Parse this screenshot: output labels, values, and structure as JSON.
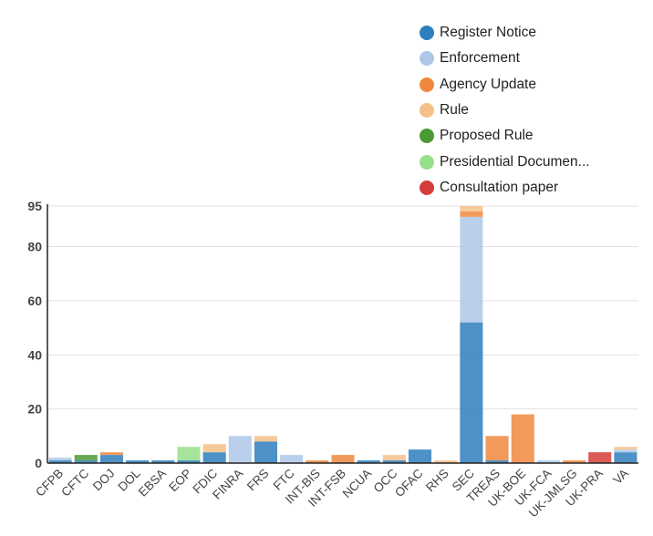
{
  "chart_data": {
    "type": "bar",
    "stacked": true,
    "categories": [
      "CFPB",
      "CFTC",
      "DOJ",
      "DOL",
      "EBSA",
      "EOP",
      "FDIC",
      "FINRA",
      "FRS",
      "FTC",
      "INT-BIS",
      "INT-FSB",
      "NCUA",
      "OCC",
      "OFAC",
      "RHS",
      "SEC",
      "TREAS",
      "UK-BOE",
      "UK-FCA",
      "UK-JMLSG",
      "UK-PRA",
      "VA"
    ],
    "series": [
      {
        "name": "Register Notice",
        "color": "#2f7ebc",
        "values": [
          1,
          1,
          3,
          1,
          1,
          1,
          4,
          0,
          8,
          0,
          0,
          0,
          1,
          1,
          5,
          0,
          52,
          1,
          0,
          0,
          0,
          0,
          4
        ]
      },
      {
        "name": "Enforcement",
        "color": "#aec7e8",
        "values": [
          1,
          0,
          0,
          0,
          0,
          0,
          0,
          10,
          0,
          3,
          0,
          0,
          0,
          0,
          0,
          0,
          39,
          0,
          0,
          1,
          0,
          0,
          1
        ]
      },
      {
        "name": "Agency Update",
        "color": "#f0883e",
        "values": [
          0,
          0,
          1,
          0,
          0,
          0,
          0,
          0,
          0,
          0,
          1,
          3,
          0,
          0,
          0,
          0,
          2,
          9,
          18,
          0,
          1,
          0,
          0
        ]
      },
      {
        "name": "Rule",
        "color": "#f5c08a",
        "values": [
          0,
          0,
          0,
          0,
          0,
          0,
          3,
          0,
          2,
          0,
          0,
          0,
          0,
          2,
          0,
          1,
          2,
          0,
          0,
          0,
          0,
          0,
          1
        ]
      },
      {
        "name": "Proposed Rule",
        "color": "#4a9a34",
        "values": [
          0,
          2,
          0,
          0,
          0,
          0,
          0,
          0,
          0,
          0,
          0,
          0,
          0,
          0,
          0,
          0,
          0,
          0,
          0,
          0,
          0,
          0,
          0
        ]
      },
      {
        "name": "Presidential Documen...",
        "color": "#98df8a",
        "values": [
          0,
          0,
          0,
          0,
          0,
          5,
          0,
          0,
          0,
          0,
          0,
          0,
          0,
          0,
          0,
          0,
          0,
          0,
          0,
          0,
          0,
          0,
          0
        ]
      },
      {
        "name": "Consultation paper",
        "color": "#d43d3a",
        "values": [
          0,
          0,
          0,
          0,
          0,
          0,
          0,
          0,
          0,
          0,
          0,
          0,
          0,
          0,
          0,
          0,
          0,
          0,
          0,
          0,
          0,
          4,
          0
        ]
      }
    ],
    "y_ticks": [
      0,
      20,
      40,
      60,
      80,
      95
    ],
    "ylim": [
      0,
      95
    ],
    "grid": true,
    "legend_position": "top-right",
    "xlabel": "",
    "ylabel": "",
    "title": ""
  }
}
